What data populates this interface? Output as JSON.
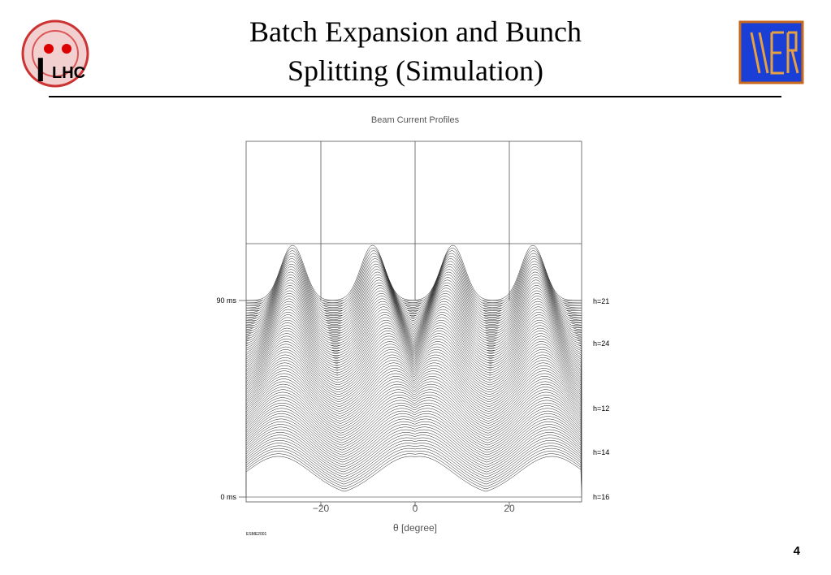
{
  "header": {
    "title_line1": "Batch Expansion and Bunch",
    "title_line2": "Splitting (Simulation)",
    "logo_left_letter": "I",
    "logo_left_text": "LHC"
  },
  "plot": {
    "title": "Beam Current Profiles",
    "x_label": "θ [degree]",
    "x_ticks": [
      "−20",
      "0",
      "20"
    ],
    "y_labels": [
      "90 ms",
      "0 ms"
    ],
    "right_labels": [
      "h=21",
      "h=24",
      "h=12",
      "h=14",
      "h=16"
    ],
    "credit": "ESME2001"
  },
  "footer": {
    "page": "4"
  }
}
